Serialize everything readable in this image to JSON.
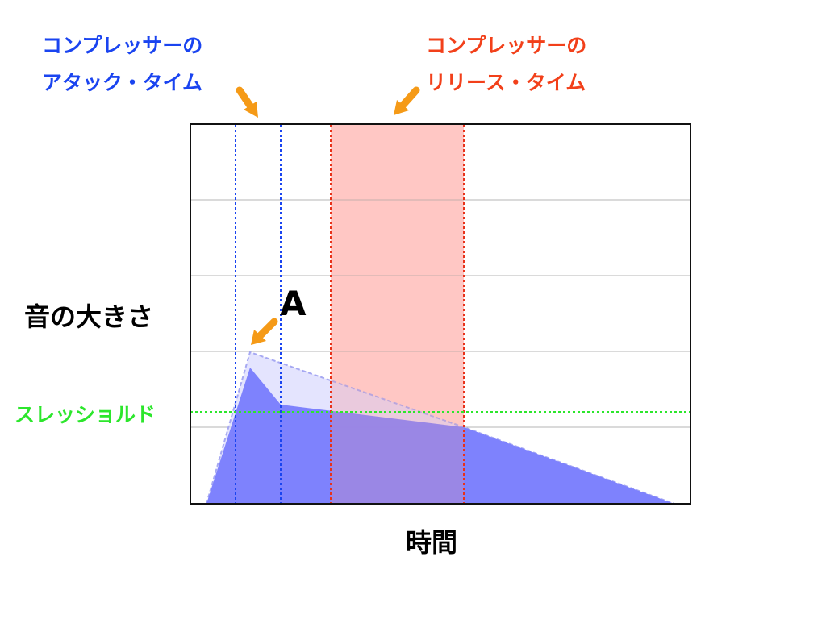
{
  "labels": {
    "attack_line1": "コンプレッサーの",
    "attack_line2": "アタック・タイム",
    "release_line1": "コンプレッサーの",
    "release_line2": "リリース・タイム",
    "y_axis": "音の大きさ",
    "x_axis": "時間",
    "threshold": "スレッショルド",
    "point_a": "A"
  },
  "colors": {
    "attack": "#1a44f0",
    "release": "#f2401a",
    "threshold": "#2ce62c",
    "release_band": "#ffd4d2",
    "input_signal": "#d9dafe",
    "output_signal": "#7b7ffd",
    "arrow": "#f59a17"
  }
}
